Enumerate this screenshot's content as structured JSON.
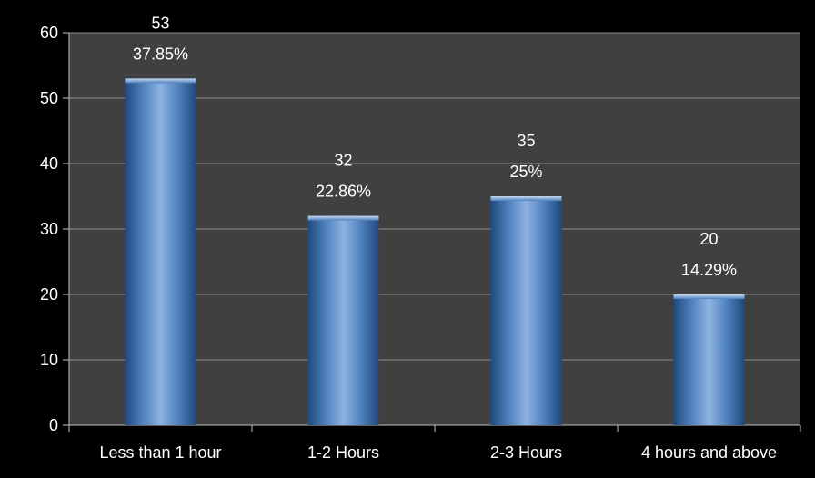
{
  "chart_data": {
    "type": "bar",
    "title": "",
    "xlabel": "",
    "ylabel": "",
    "categories": [
      "Less than 1 hour",
      "1-2 Hours",
      "2-3 Hours",
      "4 hours and above"
    ],
    "values": [
      53,
      32,
      35,
      20
    ],
    "percent_labels": [
      "37.85%",
      "22.86%",
      "25%",
      "14.29%"
    ],
    "ylim": [
      0,
      60
    ],
    "yticks": [
      0,
      10,
      20,
      30,
      40,
      50,
      60
    ],
    "grid": true,
    "legend": "none"
  },
  "colors": {
    "background": "#000000",
    "plot_area": "#404040",
    "gridline": "#8c8c8c",
    "axis": "#bfbfbf",
    "bar_light": "#8db3e2",
    "bar_mid": "#4f81bd",
    "bar_dark": "#1f497d",
    "text": "#ffffff"
  }
}
